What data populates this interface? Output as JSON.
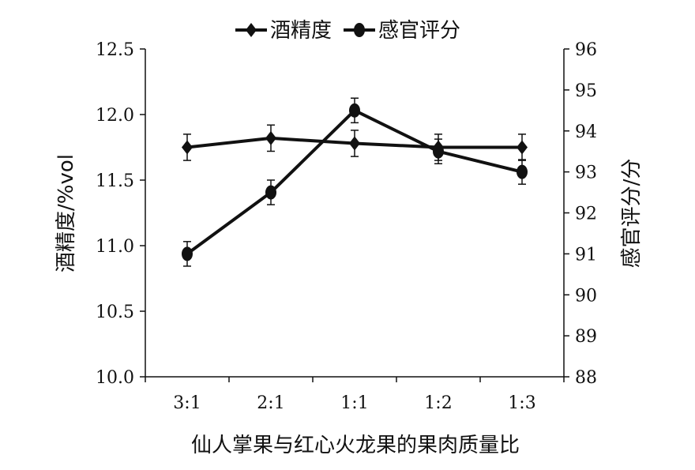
{
  "chart_data": {
    "type": "line",
    "categories": [
      "3:1",
      "2:1",
      "1:1",
      "1:2",
      "1:3"
    ],
    "xlabel": "仙人掌果与红心火龙果的果肉质量比",
    "ylabel_left": "酒精度/%vol",
    "ylabel_right": "感官评分/分",
    "ylim_left": [
      10.0,
      12.5
    ],
    "ylim_right": [
      88,
      96
    ],
    "yticks_left": [
      "10.0",
      "10.5",
      "11.0",
      "11.5",
      "12.0",
      "12.5"
    ],
    "yticks_right": [
      "88",
      "89",
      "90",
      "91",
      "92",
      "93",
      "94",
      "95",
      "96"
    ],
    "legend_position": "top-center",
    "grid": false,
    "series": [
      {
        "name": "酒精度",
        "axis": "left",
        "marker": "diamond",
        "values": [
          11.75,
          11.82,
          11.78,
          11.75,
          11.75
        ],
        "error": [
          0.1,
          0.1,
          0.1,
          0.1,
          0.1
        ]
      },
      {
        "name": "感官评分",
        "axis": "right",
        "marker": "circle",
        "values": [
          91.0,
          92.5,
          94.5,
          93.5,
          93.0
        ],
        "error": [
          0.3,
          0.3,
          0.3,
          0.3,
          0.3
        ]
      }
    ]
  }
}
